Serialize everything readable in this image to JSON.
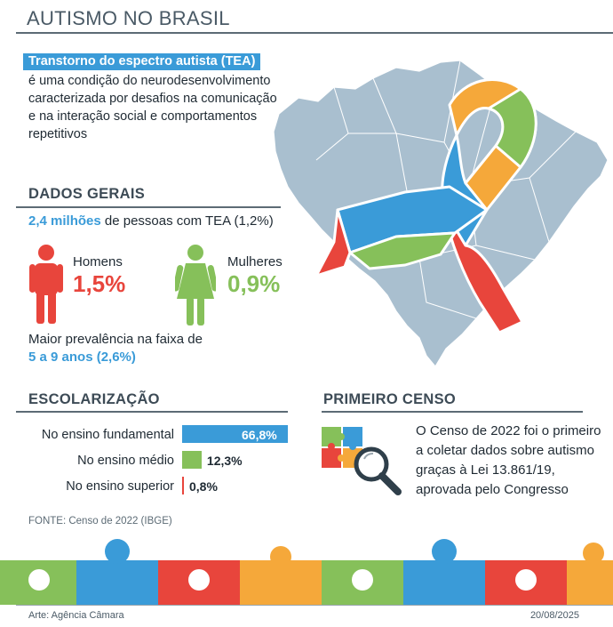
{
  "title": "AUTISMO NO BRASIL",
  "tea": {
    "label": "Transtorno do espectro autista (TEA)",
    "description": "é uma condição do neurodesenvolvimento caracterizada por desafios na comunicação e na interação social e comportamentos repetitivos"
  },
  "general": {
    "heading": "DADOS GERAIS",
    "total_highlight": "2,4 milhões",
    "total_rest": " de pessoas com TEA  (1,2%)",
    "men_label": "Homens",
    "men_value": "1,5%",
    "women_label": "Mulheres",
    "women_value": "0,9%",
    "prevalence_text": "Maior prevalência na faixa de",
    "prevalence_value": "5 a 9 anos (2,6%)"
  },
  "colors": {
    "blue": "#3a9bd8",
    "red": "#e8453c",
    "green": "#86c05a",
    "orange": "#f5a83a",
    "map": "#a9bfcf"
  },
  "schooling": {
    "heading": "ESCOLARIZAÇÃO"
  },
  "census": {
    "heading": "PRIMEIRO CENSO",
    "text": "O Censo de 2022 foi o primeiro a coletar dados sobre autismo graças à Lei 13.861/19, aprovada pelo Congresso"
  },
  "chart_data": {
    "type": "bar",
    "orientation": "horizontal",
    "categories": [
      "No ensino fundamental",
      "No ensino médio",
      "No ensino superior"
    ],
    "values": [
      66.8,
      12.3,
      0.8
    ],
    "value_labels": [
      "66,8%",
      "12,3%",
      "0,8%"
    ],
    "bar_colors": [
      "#3a9bd8",
      "#86c05a",
      "#e8453c"
    ],
    "xlim": [
      0,
      66.8
    ],
    "grid": false
  },
  "footer": {
    "source": "FONTE: Censo de 2022 (IBGE)",
    "credit": "Arte: Agência Câmara",
    "date": "20/08/2025"
  }
}
